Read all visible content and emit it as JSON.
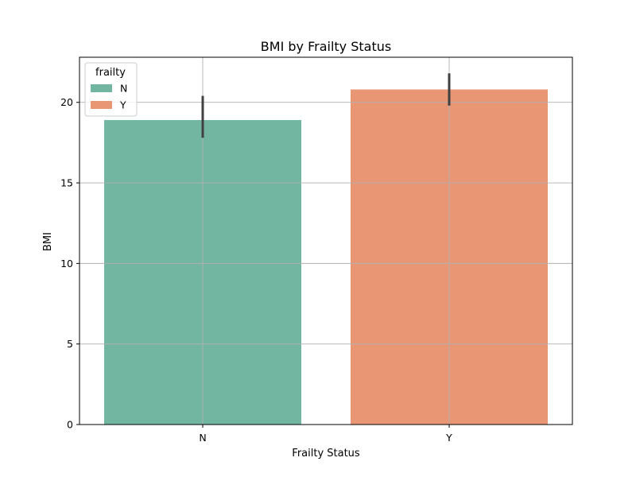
{
  "chart_data": {
    "type": "bar",
    "title": "BMI by Frailty Status",
    "xlabel": "Frailty Status",
    "ylabel": "BMI",
    "categories": [
      "N",
      "Y"
    ],
    "values": [
      18.9,
      20.8
    ],
    "error_low": [
      17.8,
      19.8
    ],
    "error_high": [
      20.4,
      21.8
    ],
    "ylim": [
      0,
      22.8
    ],
    "yticks": [
      0,
      5,
      10,
      15,
      20
    ],
    "grid": true,
    "legend": {
      "title": "frailty",
      "placement": "top-left",
      "entries": [
        "N",
        "Y"
      ]
    },
    "colors": [
      "#72b6a1",
      "#e99675"
    ]
  }
}
